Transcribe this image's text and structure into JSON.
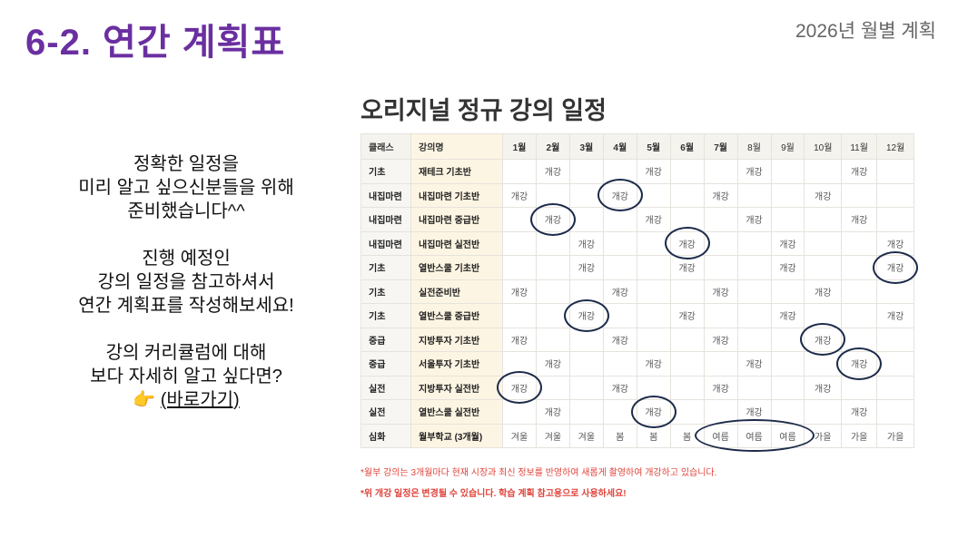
{
  "header": {
    "title": "6-2. 연간 계획표",
    "subtitle": "2026년 월별 계획"
  },
  "left_text": {
    "p1": [
      "정확한 일정을",
      "미리 알고 싶으신분들을 위해",
      "준비했습니다^^"
    ],
    "p2": [
      "진행 예정인",
      "강의 일정을 참고하셔서",
      "연간 계획표를 작성해보세요!"
    ],
    "p3": [
      "강의 커리큘럼에 대해",
      "보다 자세히 알고 싶다면?"
    ],
    "pointer_emoji": "👉",
    "link": "(바로가기)"
  },
  "schedule": {
    "title": "오리지널 정규 강의 일정",
    "columns": [
      "클래스",
      "강의명",
      "1월",
      "2월",
      "3월",
      "4월",
      "5월",
      "6월",
      "7월",
      "8월",
      "9월",
      "10월",
      "11월",
      "12월"
    ],
    "rows": [
      {
        "class": "기초",
        "name": "재테크 기초반",
        "months": [
          "",
          "개강",
          "",
          "",
          "개강",
          "",
          "",
          "개강",
          "",
          "",
          "개강",
          ""
        ],
        "circled": []
      },
      {
        "class": "내집마련",
        "name": "내집마련 기초반",
        "months": [
          "개강",
          "",
          "",
          "개강",
          "",
          "",
          "개강",
          "",
          "",
          "개강",
          "",
          ""
        ],
        "circled": [
          4
        ]
      },
      {
        "class": "내집마련",
        "name": "내집마련 중급반",
        "months": [
          "",
          "개강",
          "",
          "",
          "개강",
          "",
          "",
          "개강",
          "",
          "",
          "개강",
          ""
        ],
        "circled": [
          2
        ]
      },
      {
        "class": "내집마련",
        "name": "내집마련 실전반",
        "months": [
          "",
          "",
          "개강",
          "",
          "",
          "개강",
          "",
          "",
          "개강",
          "",
          "",
          "개강"
        ],
        "circled": [
          6
        ]
      },
      {
        "class": "기초",
        "name": "열반스쿨 기초반",
        "months": [
          "",
          "",
          "개강",
          "",
          "",
          "개강",
          "",
          "",
          "개강",
          "",
          "",
          "개강"
        ],
        "circled": [
          12
        ]
      },
      {
        "class": "기초",
        "name": "실전준비반",
        "months": [
          "개강",
          "",
          "",
          "개강",
          "",
          "",
          "개강",
          "",
          "",
          "개강",
          "",
          ""
        ],
        "circled": []
      },
      {
        "class": "기초",
        "name": "열반스쿨 중급반",
        "months": [
          "",
          "",
          "개강",
          "",
          "",
          "개강",
          "",
          "",
          "개강",
          "",
          "",
          "개강"
        ],
        "circled": [
          3
        ]
      },
      {
        "class": "중급",
        "name": "지방투자 기초반",
        "months": [
          "개강",
          "",
          "",
          "개강",
          "",
          "",
          "개강",
          "",
          "",
          "개강",
          "",
          ""
        ],
        "circled": [
          10
        ]
      },
      {
        "class": "중급",
        "name": "서울투자 기초반",
        "months": [
          "",
          "개강",
          "",
          "",
          "개강",
          "",
          "",
          "개강",
          "",
          "",
          "개강",
          ""
        ],
        "circled": [
          11
        ]
      },
      {
        "class": "실전",
        "name": "지방투자 실전반",
        "months": [
          "개강",
          "",
          "",
          "개강",
          "",
          "",
          "개강",
          "",
          "",
          "개강",
          "",
          ""
        ],
        "circled": [
          1
        ]
      },
      {
        "class": "실전",
        "name": "열반스쿨 실전반",
        "months": [
          "",
          "개강",
          "",
          "",
          "개강",
          "",
          "",
          "개강",
          "",
          "",
          "개강",
          ""
        ],
        "circled": [
          5
        ]
      },
      {
        "class": "심화",
        "name": "월부학교 (3개월)",
        "months": [
          "겨울",
          "겨울",
          "겨울",
          "봄",
          "봄",
          "봄",
          "여름",
          "여름",
          "여름",
          "가을",
          "가을",
          "가을"
        ],
        "circled_range": [
          7,
          9
        ]
      }
    ],
    "circle_color": "#1c2b4a"
  },
  "notes": [
    "*월부 강의는 3개월마다 현재 시장과 최신 정보를 반영하여 새롭게 촬영하여 개강하고 있습니다.",
    "*위 개강 일정은 변경될 수 있습니다. 학습 계획 참고용으로 사용하세요!"
  ],
  "colors": {
    "title": "#6a2fa0",
    "notes": "#e0443c",
    "name_column_bg": "#fdf5e3"
  }
}
